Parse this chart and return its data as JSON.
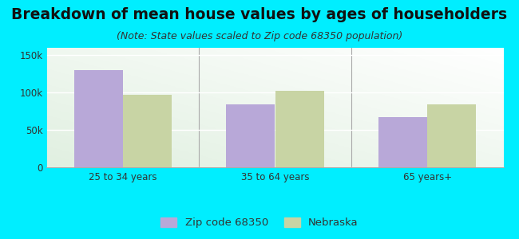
{
  "title": "Breakdown of mean house values by ages of householders",
  "subtitle": "(Note: State values scaled to Zip code 68350 population)",
  "categories": [
    "25 to 34 years",
    "35 to 64 years",
    "65 years+"
  ],
  "zip_values": [
    130000,
    84000,
    67000
  ],
  "state_values": [
    97000,
    102000,
    84000
  ],
  "zip_color": "#b8a8d8",
  "state_color": "#c8d4a4",
  "background_outer": "#00eeff",
  "ylim": [
    0,
    160000
  ],
  "yticks": [
    0,
    50000,
    100000,
    150000
  ],
  "ytick_labels": [
    "0",
    "50k",
    "100k",
    "150k"
  ],
  "legend_zip_label": "Zip code 68350",
  "legend_state_label": "Nebraska",
  "bar_width": 0.32,
  "title_fontsize": 13.5,
  "subtitle_fontsize": 9,
  "tick_fontsize": 8.5,
  "legend_fontsize": 9.5,
  "title_color": "#111111",
  "subtitle_color": "#333333",
  "tick_color": "#333333"
}
